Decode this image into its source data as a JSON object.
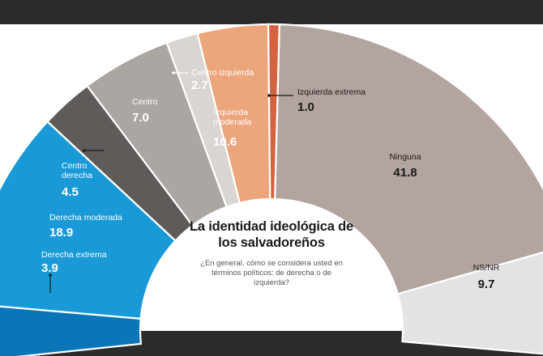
{
  "colors": {
    "page_band": "#2b2b2b",
    "ninguna": "#b2a49e",
    "ns_nr": "#e3e3e3",
    "izquierda_extrema": "#d66340",
    "izquierda_moderada": "#eda57c",
    "centro_izquierda": "#d9d5d1",
    "centro": "#aaa6a2",
    "centro_derecha": "#5f5b59",
    "derecha_moderada": "#199ad6",
    "derecha_extrema": "#0a76b8",
    "extra_right": "#77746f",
    "extra_left": "#4e4b49"
  },
  "chart_data": {
    "type": "pie",
    "style": "semicircular donut",
    "title": "La identidad ideológica de los salvadoreños",
    "subtitle": "¿En general, cómo se considera usted en términos políticos: de derecha o de izquierda?",
    "slices": [
      {
        "key": "derecha_extrema",
        "label": "Derecha extrema",
        "value": 3.9,
        "color": "#0a76b8",
        "value_text": "3.9"
      },
      {
        "key": "derecha_moderada",
        "label": "Derecha moderada",
        "value": 18.9,
        "color": "#199ad6",
        "value_text": "18.9"
      },
      {
        "key": "centro_derecha",
        "label": "Centro derecha",
        "value": 4.5,
        "color": "#5f5b59",
        "value_text": "4.5"
      },
      {
        "key": "centro",
        "label": "Centro",
        "value": 7.0,
        "color": "#aaa6a2",
        "value_text": "7.0"
      },
      {
        "key": "centro_izquierda",
        "label": "Centro izquierda",
        "value": 2.7,
        "color": "#d9d5d1",
        "value_text": "2.7"
      },
      {
        "key": "izquierda_moderada",
        "label": "Izquierda moderada",
        "value": 10.6,
        "color": "#eda57c",
        "value_text": "10.6"
      },
      {
        "key": "izquierda_extrema",
        "label": "Izquierda extrema",
        "value": 1.0,
        "color": "#d66340",
        "value_text": "1.0"
      },
      {
        "key": "ninguna",
        "label": "Ninguna",
        "value": 41.8,
        "color": "#b2a49e",
        "value_text": "41.8"
      },
      {
        "key": "ns_nr",
        "label": "NS/NR",
        "value": 9.7,
        "color": "#e3e3e3",
        "value_text": "9.7"
      }
    ],
    "label_lines": {
      "derecha_extrema": [
        "Derecha extrema"
      ],
      "derecha_moderada": [
        "Derecha moderada"
      ],
      "centro_derecha": [
        "Centro",
        "derecha"
      ],
      "centro": [
        "Centro"
      ],
      "centro_izquierda": [
        "Centro izquierda"
      ],
      "izquierda_moderada": [
        "Izquierda",
        "moderada"
      ],
      "izquierda_extrema": [
        "Izquierda extrema"
      ],
      "ninguna": [
        "Ninguna"
      ],
      "ns_nr": [
        "NS/NR"
      ]
    }
  }
}
